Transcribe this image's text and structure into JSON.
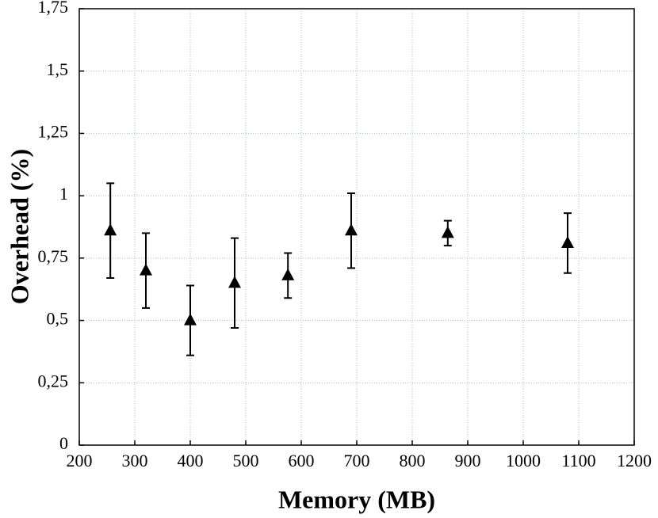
{
  "chart_data": {
    "type": "scatter",
    "xlabel": "Memory (MB)",
    "ylabel": "Overhead (%)",
    "series": [
      {
        "color": "#000000",
        "x": [
          256,
          320,
          400,
          480,
          576,
          690,
          864,
          1080
        ],
        "values": [
          0.86,
          0.7,
          0.5,
          0.65,
          0.68,
          0.86,
          0.85,
          0.81
        ],
        "errors": [
          0.19,
          0.15,
          0.14,
          0.18,
          0.09,
          0.15,
          0.05,
          0.12
        ]
      }
    ],
    "xlim": [
      200,
      1200
    ],
    "xticks": [
      200,
      300,
      400,
      500,
      600,
      700,
      800,
      900,
      1000,
      1100,
      1200
    ],
    "ylim": [
      0,
      1.75
    ],
    "yticks": [
      0,
      {
        "value": 0.25,
        "label": "0,25"
      },
      {
        "value": 0.5,
        "label": "0,5"
      },
      {
        "value": 0.75,
        "label": "0,75"
      },
      1,
      {
        "value": 1.25,
        "label": "1,25"
      },
      {
        "value": 1.5,
        "label": "1,5"
      },
      {
        "value": 1.75,
        "label": "1,75"
      }
    ],
    "grid": true
  }
}
